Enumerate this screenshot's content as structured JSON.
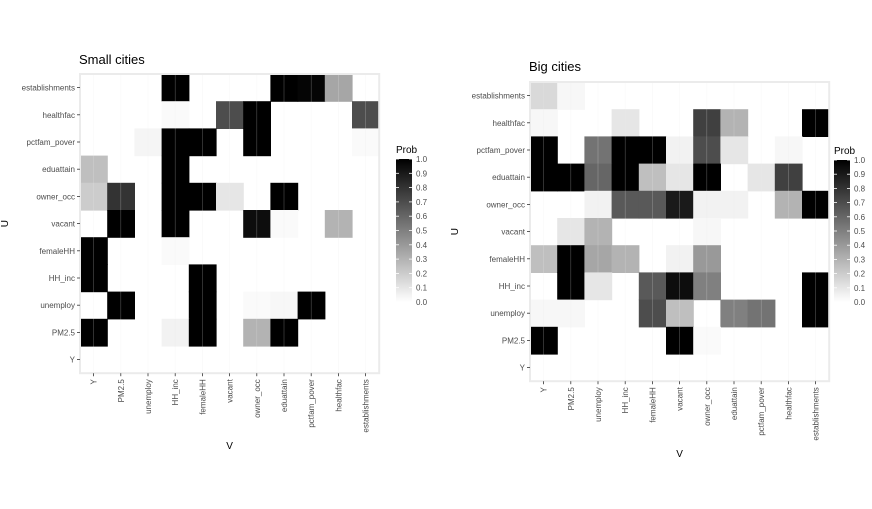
{
  "chart_data": [
    {
      "type": "heatmap",
      "title": "Small cities",
      "xlabel": "V",
      "ylabel": "U",
      "x_categories": [
        "Y",
        "PM2.5",
        "unemploy",
        "HH_inc",
        "femaleHH",
        "vacant",
        "owner_occ",
        "eduattain",
        "pctfam_pover",
        "healthfac",
        "establishments"
      ],
      "y_categories": [
        "establishments",
        "healthfac",
        "pctfam_pover",
        "eduattain",
        "owner_occ",
        "vacant",
        "femaleHH",
        "HH_inc",
        "unemploy",
        "PM2.5",
        "Y"
      ],
      "values": [
        [
          0.0,
          0.0,
          0.0,
          1.0,
          0.0,
          0.0,
          0.0,
          1.0,
          0.98,
          0.35,
          0.0
        ],
        [
          0.0,
          0.0,
          0.0,
          0.02,
          0.0,
          0.7,
          1.0,
          0.0,
          0.0,
          0.0,
          0.7
        ],
        [
          0.0,
          0.0,
          0.04,
          1.0,
          1.0,
          0.0,
          1.0,
          0.0,
          0.0,
          0.0,
          0.02
        ],
        [
          0.25,
          0.0,
          0.0,
          1.0,
          0.0,
          0.0,
          0.0,
          0.0,
          0.0,
          0.0,
          0.0
        ],
        [
          0.2,
          0.8,
          0.0,
          1.0,
          1.0,
          0.1,
          0.0,
          1.0,
          0.0,
          0.0,
          0.0
        ],
        [
          0.0,
          1.0,
          0.0,
          1.0,
          0.0,
          0.0,
          0.95,
          0.02,
          0.0,
          0.3,
          0.0
        ],
        [
          1.0,
          0.0,
          0.0,
          0.02,
          0.0,
          0.0,
          0.0,
          0.0,
          0.0,
          0.0,
          0.0
        ],
        [
          1.0,
          0.0,
          0.0,
          0.0,
          1.0,
          0.0,
          0.0,
          0.0,
          0.0,
          0.0,
          0.0
        ],
        [
          0.0,
          1.0,
          0.0,
          0.0,
          1.0,
          0.0,
          0.02,
          0.03,
          1.0,
          0.0,
          0.0
        ],
        [
          1.0,
          0.0,
          0.0,
          0.05,
          1.0,
          0.0,
          0.3,
          1.0,
          0.0,
          0.0,
          0.0
        ],
        [
          0.0,
          0.0,
          0.0,
          0.0,
          0.0,
          0.0,
          0.0,
          0.0,
          0.0,
          0.0,
          0.0
        ]
      ],
      "legend": {
        "title": "Prob",
        "ticks": [
          "1.0",
          "0.9",
          "0.8",
          "0.7",
          "0.6",
          "0.5",
          "0.4",
          "0.3",
          "0.2",
          "0.1",
          "0.0"
        ],
        "placement": "right"
      },
      "color_low": "#ffffff",
      "color_high": "#000000",
      "grid": true
    },
    {
      "type": "heatmap",
      "title": "Big cities",
      "xlabel": "V",
      "ylabel": "U",
      "x_categories": [
        "Y",
        "PM2.5",
        "unemploy",
        "HH_inc",
        "femaleHH",
        "vacant",
        "owner_occ",
        "eduattain",
        "pctfam_pover",
        "healthfac",
        "establishments"
      ],
      "y_categories": [
        "establishments",
        "healthfac",
        "pctfam_pover",
        "eduattain",
        "owner_occ",
        "vacant",
        "femaleHH",
        "HH_inc",
        "unemploy",
        "PM2.5",
        "Y"
      ],
      "values": [
        [
          0.15,
          0.03,
          0.0,
          0.0,
          0.0,
          0.0,
          0.0,
          0.0,
          0.0,
          0.0,
          0.0
        ],
        [
          0.03,
          0.0,
          0.0,
          0.1,
          0.0,
          0.0,
          0.75,
          0.3,
          0.0,
          0.0,
          1.0
        ],
        [
          1.0,
          0.0,
          0.55,
          1.0,
          1.0,
          0.05,
          0.7,
          0.1,
          0.0,
          0.03,
          0.0
        ],
        [
          1.0,
          1.0,
          0.6,
          1.0,
          0.25,
          0.1,
          1.0,
          0.0,
          0.1,
          0.75,
          0.0
        ],
        [
          0.0,
          0.0,
          0.05,
          0.65,
          0.65,
          0.9,
          0.05,
          0.05,
          0.0,
          0.3,
          1.0
        ],
        [
          0.0,
          0.1,
          0.3,
          0.0,
          0.0,
          0.0,
          0.03,
          0.0,
          0.0,
          0.0,
          0.0
        ],
        [
          0.25,
          1.0,
          0.35,
          0.3,
          0.0,
          0.05,
          0.4,
          0.0,
          0.0,
          0.0,
          0.0
        ],
        [
          0.0,
          1.0,
          0.1,
          0.0,
          0.65,
          0.95,
          0.5,
          0.0,
          0.0,
          0.0,
          1.0
        ],
        [
          0.03,
          0.03,
          0.0,
          0.0,
          0.7,
          0.25,
          0.0,
          0.5,
          0.55,
          0.0,
          1.0
        ],
        [
          1.0,
          0.0,
          0.0,
          0.0,
          0.0,
          1.0,
          0.02,
          0.0,
          0.0,
          0.0,
          0.0
        ],
        [
          0.0,
          0.0,
          0.0,
          0.0,
          0.0,
          0.0,
          0.0,
          0.0,
          0.0,
          0.0,
          0.0
        ]
      ],
      "legend": {
        "title": "Prob",
        "ticks": [
          "1.0",
          "0.9",
          "0.8",
          "0.7",
          "0.6",
          "0.5",
          "0.4",
          "0.3",
          "0.2",
          "0.1",
          "0.0"
        ],
        "placement": "right"
      },
      "color_low": "#ffffff",
      "color_high": "#000000",
      "grid": true
    }
  ]
}
